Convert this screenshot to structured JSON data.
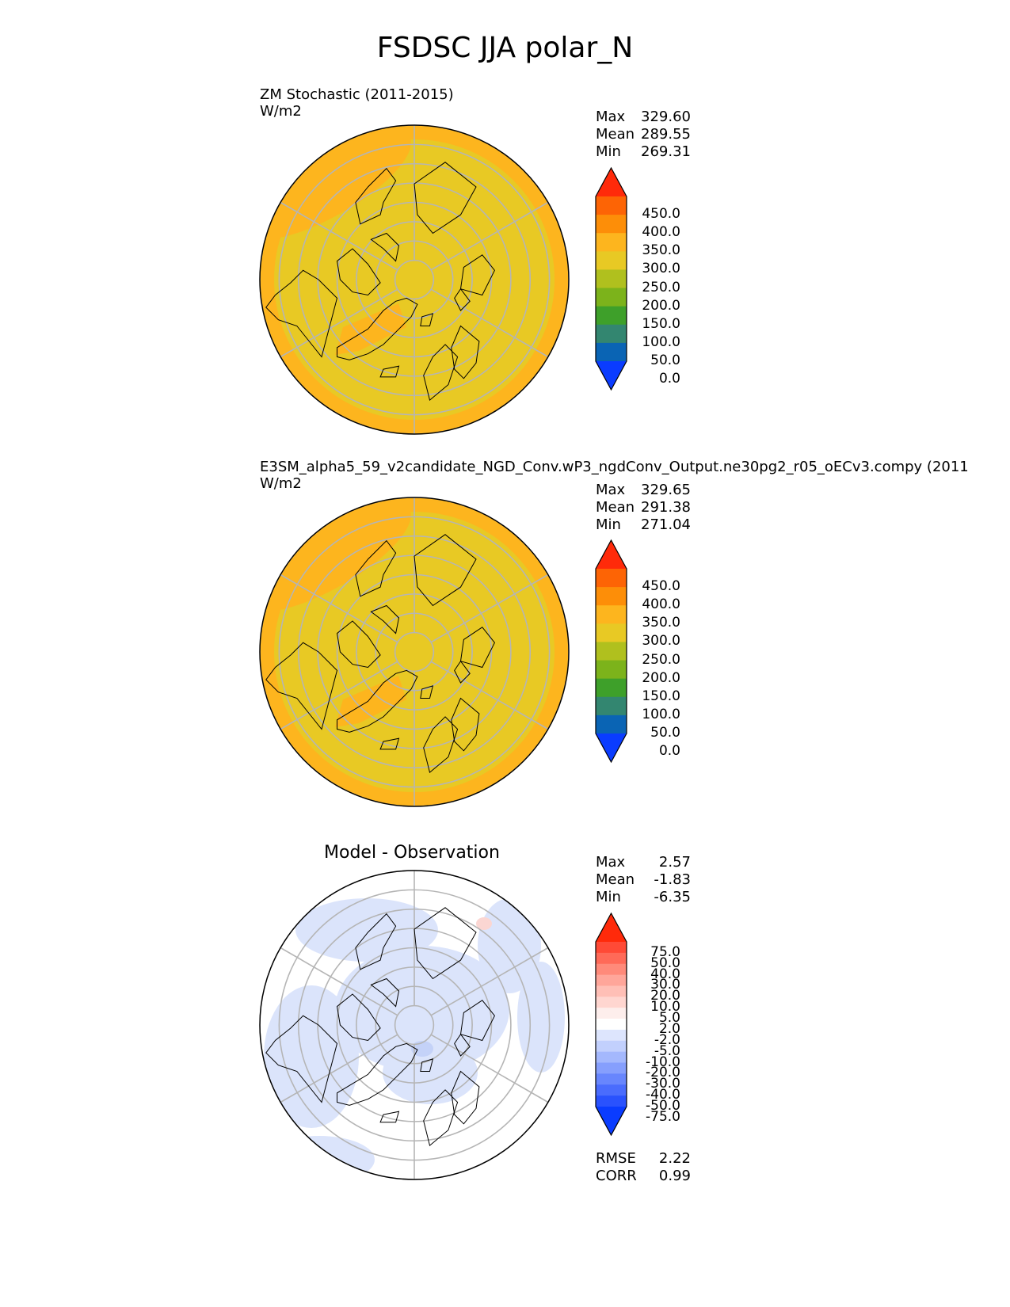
{
  "title": "FSDSC JJA polar_N",
  "colors": {
    "base_fill": "#e8c924",
    "warm_fill": "#fdb51e",
    "grid": "#b5b5b5",
    "coast": "#000000",
    "diff_blue": "#dbe4fb",
    "diff_blue2": "#c4d2f8",
    "diff_red": "#fbd6d2"
  },
  "panels": [
    {
      "title": "ZM Stochastic (2011-2015)",
      "units": "W/m2",
      "stats": [
        {
          "label": "Max",
          "value": "329.60"
        },
        {
          "label": "Mean",
          "value": "289.55"
        },
        {
          "label": "Min",
          "value": "269.31"
        }
      ]
    },
    {
      "title": "E3SM_alpha5_59_v2candidate_NGD_Conv.wP3_ngdConv_Output.ne30pg2_r05_oECv3.compy (2011",
      "units": "W/m2",
      "stats": [
        {
          "label": "Max",
          "value": "329.65"
        },
        {
          "label": "Mean",
          "value": "291.38"
        },
        {
          "label": "Min",
          "value": "271.04"
        }
      ]
    },
    {
      "title": "Model - Observation",
      "units": "",
      "stats": [
        {
          "label": "Max",
          "value": "2.57"
        },
        {
          "label": "Mean",
          "value": "-1.83"
        },
        {
          "label": "Min",
          "value": "-6.35"
        }
      ],
      "metrics": [
        {
          "label": "RMSE",
          "value": "2.22"
        },
        {
          "label": "CORR",
          "value": "0.99"
        }
      ]
    }
  ],
  "chart_data": [
    {
      "type": "heatmap",
      "projection": "north-polar-stereographic",
      "title": "ZM Stochastic (2011-2015)",
      "units": "W/m2",
      "colorbar": {
        "ticks": [
          "450.0",
          "400.0",
          "350.0",
          "300.0",
          "250.0",
          "200.0",
          "150.0",
          "100.0",
          "50.0",
          "0.0"
        ],
        "colors": [
          "#ff2a0a",
          "#fd6405",
          "#fd8e08",
          "#fdb51e",
          "#e8c924",
          "#b0c01e",
          "#7cb31b",
          "#3ea02a",
          "#338670",
          "#0a64b4",
          "#0a3cff"
        ],
        "extend": "both"
      },
      "stats": {
        "max": 329.6,
        "mean": 289.55,
        "min": 269.31
      }
    },
    {
      "type": "heatmap",
      "projection": "north-polar-stereographic",
      "title": "E3SM_alpha5_59_v2candidate_NGD_Conv.wP3_ngdConv_Output.ne30pg2_r05_oECv3.compy (2011",
      "units": "W/m2",
      "colorbar": {
        "ticks": [
          "450.0",
          "400.0",
          "350.0",
          "300.0",
          "250.0",
          "200.0",
          "150.0",
          "100.0",
          "50.0",
          "0.0"
        ],
        "colors": [
          "#ff2a0a",
          "#fd6405",
          "#fd8e08",
          "#fdb51e",
          "#e8c924",
          "#b0c01e",
          "#7cb31b",
          "#3ea02a",
          "#338670",
          "#0a64b4",
          "#0a3cff"
        ],
        "extend": "both"
      },
      "stats": {
        "max": 329.65,
        "mean": 291.38,
        "min": 271.04
      }
    },
    {
      "type": "heatmap",
      "projection": "north-polar-stereographic",
      "title": "Model - Observation",
      "colorbar": {
        "ticks": [
          "75.0",
          "50.0",
          "40.0",
          "30.0",
          "20.0",
          "10.0",
          "5.0",
          "2.0",
          "-2.0",
          "-5.0",
          "-10.0",
          "-20.0",
          "-30.0",
          "-40.0",
          "-50.0",
          "-75.0"
        ],
        "colors": [
          "#ff2a0a",
          "#ff4a36",
          "#ff6a58",
          "#ff8a7a",
          "#ffa69a",
          "#ffbfb6",
          "#ffd6d0",
          "#fdeeec",
          "#ffffff",
          "#dde5fd",
          "#c2d0fd",
          "#a4b8fd",
          "#869ffd",
          "#6886fd",
          "#4a6cfd",
          "#2a52fd",
          "#0a3cff"
        ],
        "extend": "both"
      },
      "stats": {
        "max": 2.57,
        "mean": -1.83,
        "min": -6.35,
        "rmse": 2.22,
        "corr": 0.99
      }
    }
  ]
}
